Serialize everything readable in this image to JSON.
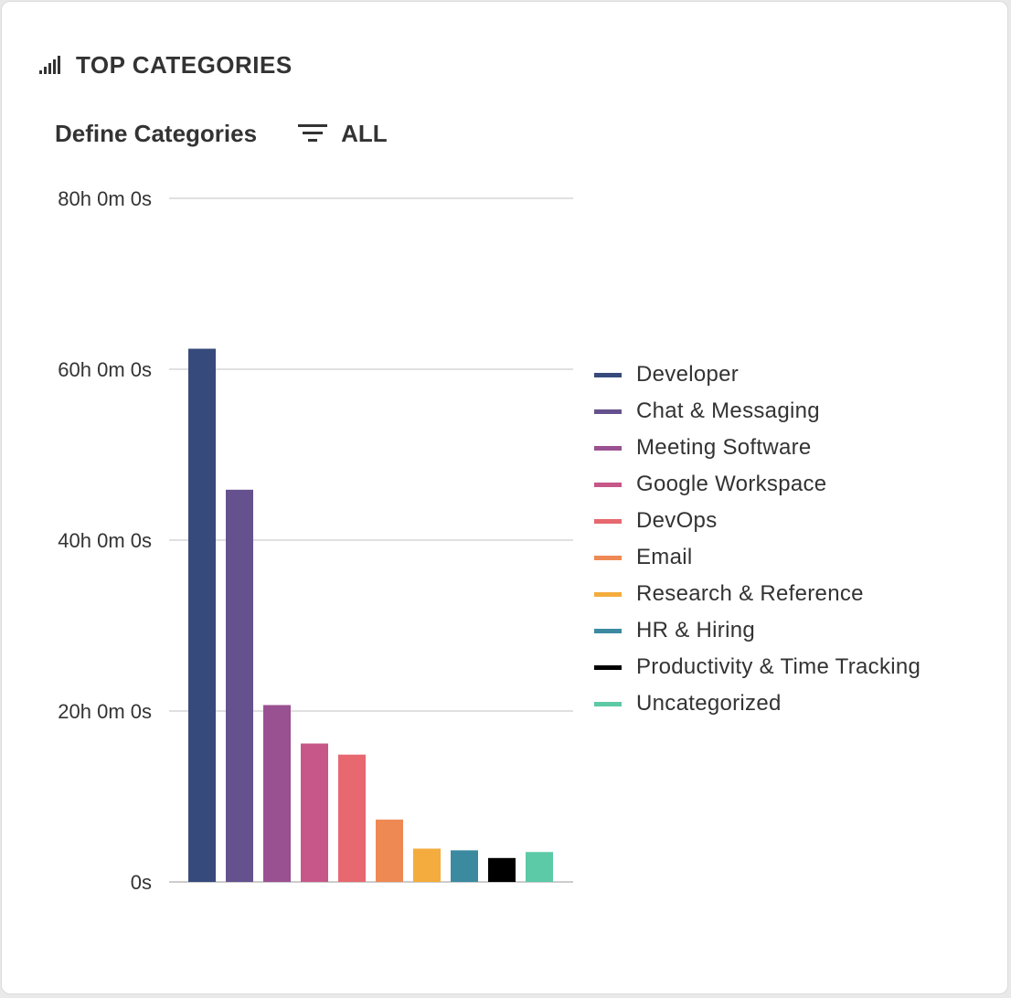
{
  "header": {
    "title": "TOP CATEGORIES",
    "icon": "signal-bars-icon"
  },
  "toolbar": {
    "define_label": "Define Categories",
    "filter_icon": "filter-icon",
    "filter_label": "ALL"
  },
  "chart_data": {
    "type": "bar",
    "title": "",
    "xlabel": "",
    "ylabel": "",
    "y_unit": "hours",
    "ylim": [
      0,
      80
    ],
    "yticks": [
      0,
      20,
      40,
      60,
      80
    ],
    "ytick_labels": [
      "0s",
      "20h 0m 0s",
      "40h 0m 0s",
      "60h 0m 0s",
      "80h 0m 0s"
    ],
    "grid": true,
    "legend_position": "right",
    "categories": [
      "Developer",
      "Chat & Messaging",
      "Meeting Software",
      "Google Workspace",
      "DevOps",
      "Email",
      "Research & Reference",
      "HR & Hiring",
      "Productivity & Time Tracking",
      "Uncategorized"
    ],
    "values": [
      62.4,
      45.9,
      20.7,
      16.2,
      14.9,
      7.3,
      3.9,
      3.7,
      2.8,
      3.5
    ],
    "colors": [
      "#374a7c",
      "#66518f",
      "#9a5192",
      "#c65788",
      "#e7686f",
      "#ee8954",
      "#f3ac3d",
      "#3c8aa0",
      "#000000",
      "#5cc9a7"
    ]
  }
}
